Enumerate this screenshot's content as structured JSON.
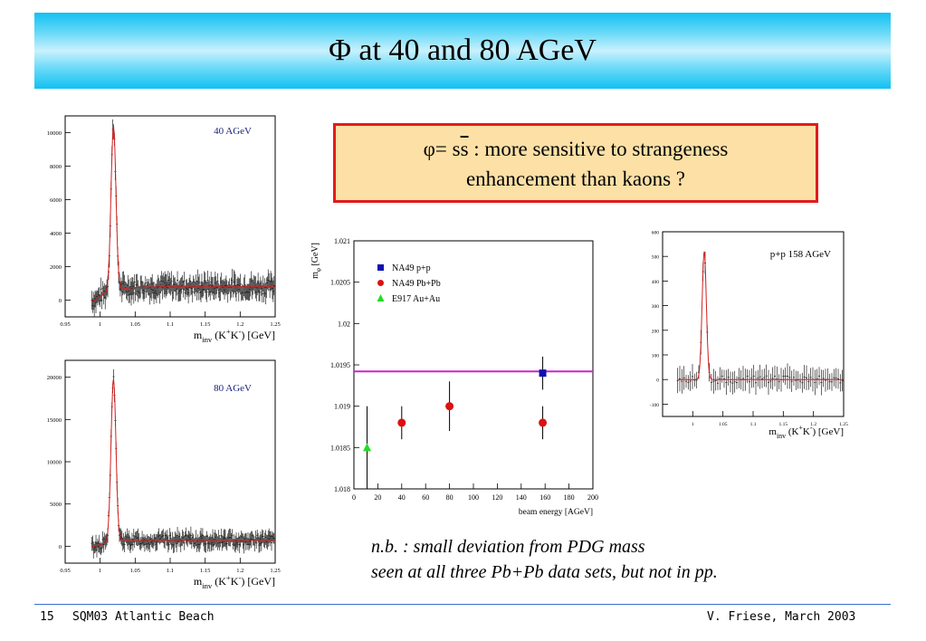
{
  "title": "Φ at 40 and 80 AGeV",
  "note_box": {
    "line1_prefix": "φ= s",
    "line1_overline": "s",
    "line1_suffix": " : more sensitive to strangeness",
    "line2": "enhancement than kaons ?"
  },
  "nb_note": {
    "line1": "n.b. : small deviation from PDG mass",
    "line2": "seen at all three Pb+Pb data sets, but not in pp."
  },
  "footer": {
    "page": "15",
    "conference": "SQM03 Atlantic Beach",
    "author_date": "V. Friese, March 2003"
  },
  "colors": {
    "hist": "#202020",
    "fit": "#d02020",
    "pdg_line": "#cc22cc",
    "label_blue": "#1a237e"
  },
  "chart_data": [
    {
      "type": "line",
      "id": "hist40",
      "label": "40 AGeV",
      "xlabel_main": "m",
      "xlabel_sub": "inv",
      "xlabel_rest": " (K",
      "xlabel_sup1": "+",
      "xlabel_mid": "K",
      "xlabel_sup2": "-",
      "xlabel_end": ") [GeV]",
      "xlim": [
        0.95,
        1.25
      ],
      "ylim": [
        -1000,
        11000
      ],
      "xticks": [
        0.95,
        1.0,
        1.05,
        1.1,
        1.15,
        1.2,
        1.25
      ],
      "xtick_labels": [
        "0.95",
        "1",
        "1.05",
        "1.1",
        "1.15",
        "1.2",
        "1.25"
      ],
      "yticks": [
        0,
        2000,
        4000,
        6000,
        8000,
        10000
      ],
      "ytick_labels": [
        "0",
        "2000",
        "4000",
        "6000",
        "8000",
        "10000"
      ],
      "peak": {
        "x": 1.019,
        "y": 10600
      },
      "background_level": 800,
      "background_start": 0.993
    },
    {
      "type": "line",
      "id": "hist80",
      "label": "80 AGeV",
      "xlabel_main": "m",
      "xlabel_sub": "inv",
      "xlabel_rest": " (K",
      "xlabel_sup1": "+",
      "xlabel_mid": "K",
      "xlabel_sup2": "-",
      "xlabel_end": ") [GeV]",
      "xlim": [
        0.95,
        1.25
      ],
      "ylim": [
        -2000,
        22000
      ],
      "xticks": [
        0.95,
        1.0,
        1.05,
        1.1,
        1.15,
        1.2,
        1.25
      ],
      "xtick_labels": [
        "0.95",
        "1",
        "1.05",
        "1.1",
        "1.15",
        "1.2",
        "1.25"
      ],
      "yticks": [
        0,
        5000,
        10000,
        15000,
        20000
      ],
      "ytick_labels": [
        "0",
        "5000",
        "10000",
        "15000",
        "20000"
      ],
      "peak": {
        "x": 1.019,
        "y": 20000
      },
      "background_level": 700,
      "background_start": 0.993
    },
    {
      "type": "scatter",
      "id": "mass_vs_energy",
      "ylabel_main": "m",
      "ylabel_sub": "φ",
      "ylabel_rest": " [GeV]",
      "xlabel": "beam energy [AGeV]",
      "xlim": [
        0,
        200
      ],
      "ylim": [
        1.018,
        1.021
      ],
      "xticks": [
        0,
        20,
        40,
        60,
        80,
        100,
        120,
        140,
        160,
        180,
        200
      ],
      "xtick_labels": [
        "0",
        "20",
        "40",
        "60",
        "80",
        "100",
        "120",
        "140",
        "160",
        "180",
        "200"
      ],
      "yticks": [
        1.018,
        1.0185,
        1.019,
        1.0195,
        1.02,
        1.0205,
        1.021
      ],
      "ytick_labels": [
        "1.018",
        "1.0185",
        "1.019",
        "1.0195",
        "1.02",
        "1.0205",
        "1.021"
      ],
      "pdg_mass": 1.01942,
      "legend": [
        "NA49 p+p",
        "NA49 Pb+Pb",
        "E917 Au+Au"
      ],
      "series": [
        {
          "name": "NA49 p+p",
          "marker": "square",
          "color": "#1010b0",
          "points": [
            {
              "x": 158,
              "y": 1.0194,
              "err": 0.0002
            }
          ]
        },
        {
          "name": "NA49 Pb+Pb",
          "marker": "circle",
          "color": "#dd1111",
          "points": [
            {
              "x": 40,
              "y": 1.0188,
              "err": 0.0002
            },
            {
              "x": 80,
              "y": 1.019,
              "err": 0.0003
            },
            {
              "x": 158,
              "y": 1.0188,
              "err": 0.0002
            }
          ]
        },
        {
          "name": "E917 Au+Au",
          "marker": "triangle",
          "color": "#22dd22",
          "points": [
            {
              "x": 11,
              "y": 1.0185,
              "err": 0.0005
            }
          ]
        }
      ]
    },
    {
      "type": "line",
      "id": "histpp",
      "label": "p+p  158 AGeV",
      "xlabel_main": "m",
      "xlabel_sub": "inv",
      "xlabel_rest": " (K",
      "xlabel_sup1": "+",
      "xlabel_mid": "K",
      "xlabel_sup2": "-",
      "xlabel_end": ") [GeV]",
      "xlim": [
        0.95,
        1.25
      ],
      "ylim": [
        -150,
        600
      ],
      "xticks": [
        1.0,
        1.05,
        1.1,
        1.15,
        1.2,
        1.25
      ],
      "xtick_labels": [
        "1",
        "1.05",
        "1.1",
        "1.15",
        "1.2",
        "1.25"
      ],
      "yticks": [
        -100,
        0,
        100,
        200,
        300,
        400,
        500,
        600
      ],
      "ytick_labels": [
        "-100",
        "0",
        "100",
        "200",
        "300",
        "400",
        "500",
        "600"
      ],
      "peak": {
        "x": 1.019,
        "y": 520
      },
      "background_level": 0,
      "background_start": 0.96
    }
  ]
}
